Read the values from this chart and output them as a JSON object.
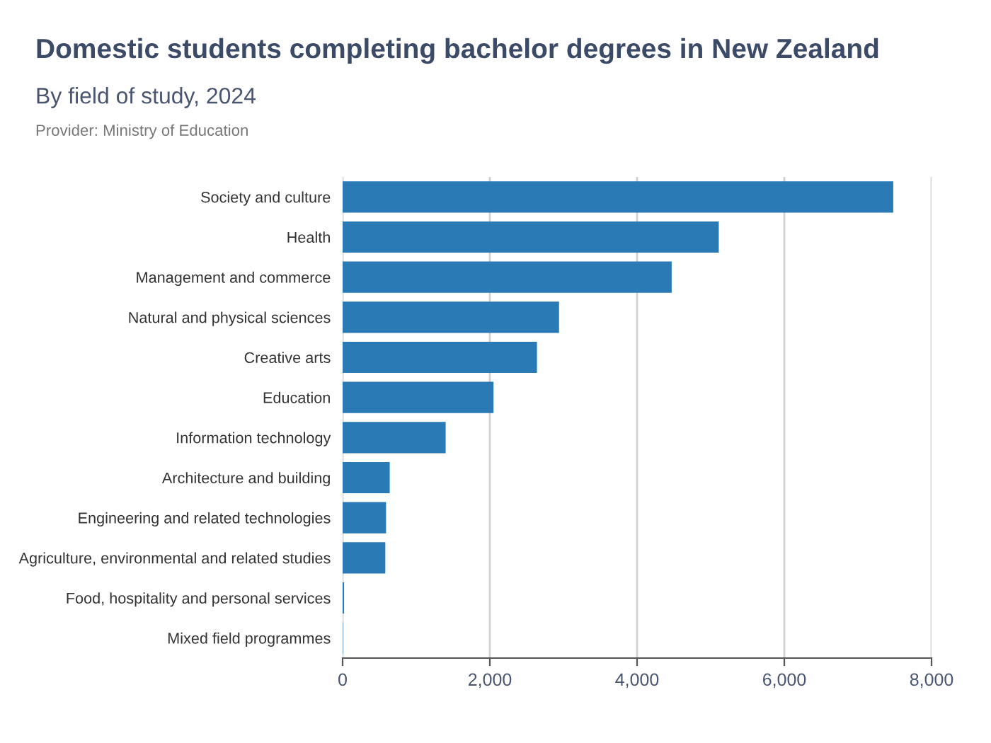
{
  "chart_data": {
    "type": "bar",
    "orientation": "horizontal",
    "title": "Domestic students completing bachelor degrees in New Zealand",
    "subtitle": "By field of study, 2024",
    "annotations": [
      "Provider: Ministry of Education"
    ],
    "categories": [
      "Society and culture",
      "Health",
      "Management and commerce",
      "Natural and physical sciences",
      "Creative arts",
      "Education",
      "Information technology",
      "Architecture and building",
      "Engineering and related technologies",
      "Agriculture, environmental and related studies",
      "Food, hospitality and personal services",
      "Mixed field programmes"
    ],
    "values": [
      7480,
      5110,
      4470,
      2940,
      2640,
      2050,
      1400,
      640,
      590,
      580,
      20,
      5
    ],
    "color": "#2a7ab6",
    "xlim": [
      0,
      8000
    ],
    "xticks": [
      {
        "value": 0,
        "label": "0"
      },
      {
        "value": 2000,
        "label": "2,000"
      },
      {
        "value": 4000,
        "label": "4,000"
      },
      {
        "value": 6000,
        "label": "6,000"
      },
      {
        "value": 8000,
        "label": "8,000"
      }
    ],
    "grid": "x"
  }
}
